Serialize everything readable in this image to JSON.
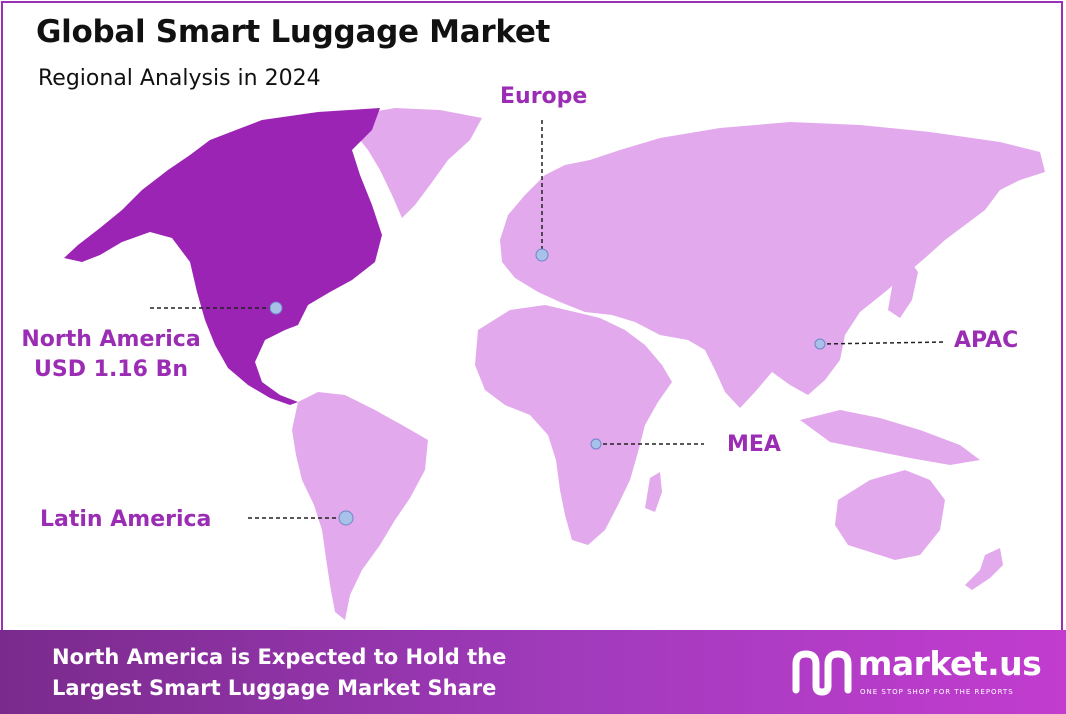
{
  "title": "Global Smart Luggage Market",
  "subtitle": "Regional Analysis in 2024",
  "regions": {
    "north_america": {
      "name": "North America",
      "value": "USD 1.16 Bn",
      "highlighted": true
    },
    "europe": {
      "name": "Europe"
    },
    "apac": {
      "name": "APAC"
    },
    "mea": {
      "name": "MEA"
    },
    "latin_america": {
      "name": "Latin America"
    }
  },
  "colors": {
    "highlight": "#9b24b5",
    "land": "#e2a9ec",
    "label": "#9b2cb4",
    "marker": "#a8c1e8"
  },
  "footer": {
    "line1": "North America is Expected to Hold the",
    "line2": "Largest Smart Luggage Market Share"
  },
  "brand": {
    "name": "market.us",
    "tagline": "ONE STOP SHOP FOR THE REPORTS"
  }
}
